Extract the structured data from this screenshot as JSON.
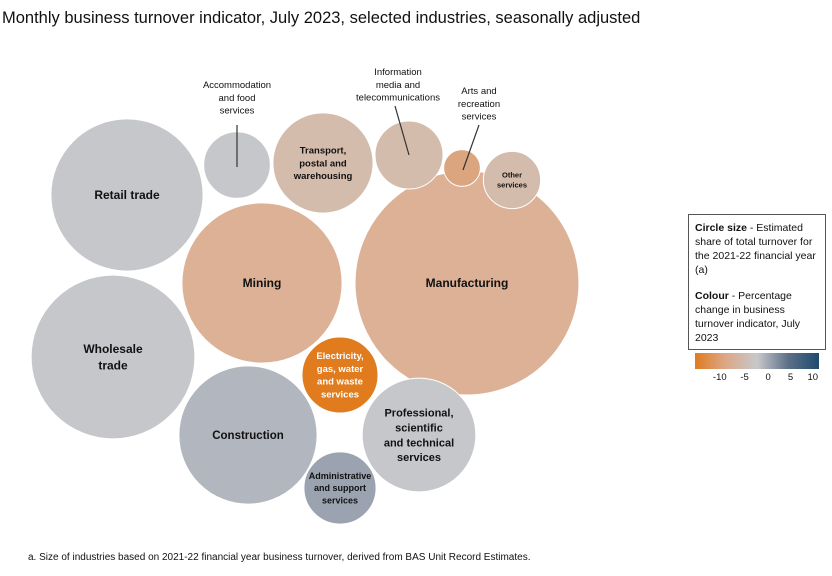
{
  "title": "Monthly business turnover indicator, July 2023, selected industries, seasonally adjusted",
  "chart_data": {
    "type": "bubble",
    "title": "Monthly business turnover indicator, July 2023, selected industries, seasonally adjusted",
    "size_measure": "Estimated share of total turnover for the 2021-22 financial year (%)",
    "colour_measure": "Percentage change in business turnover indicator, July 2023",
    "bubbles": [
      {
        "label": "Retail trade",
        "share": 12.0,
        "pct_change": 0,
        "color": "#c6c7ca"
      },
      {
        "label": "Wholesale trade",
        "share": 13.9,
        "pct_change": 0,
        "color": "#c6c7ca"
      },
      {
        "label": "Mining",
        "share": 13.3,
        "pct_change": -4,
        "color": "#dcb196"
      },
      {
        "label": "Manufacturing",
        "share": 26.0,
        "pct_change": -4,
        "color": "#dcb196"
      },
      {
        "label": "Construction",
        "share": 9.9,
        "pct_change": 2,
        "color": "#b2b6bf"
      },
      {
        "label": "Professional, scientific and technical services",
        "share": 6.7,
        "pct_change": 0,
        "color": "#c6c7ca"
      },
      {
        "label": "Electricity, gas, water and waste services",
        "share": 3.0,
        "pct_change": -12,
        "color": "#e07b1e"
      },
      {
        "label": "Administrative and support services",
        "share": 2.7,
        "pct_change": 4,
        "color": "#9ca3b0"
      },
      {
        "label": "Transport, postal and warehousing",
        "share": 5.2,
        "pct_change": -2,
        "color": "#d4bcac"
      },
      {
        "label": "Accommodation and food services",
        "share": 2.3,
        "pct_change": 0,
        "color": "#c6c7ca"
      },
      {
        "label": "Information media and telecommunications",
        "share": 2.4,
        "pct_change": -2,
        "color": "#d4bcac"
      },
      {
        "label": "Arts and recreation services",
        "share": 0.7,
        "pct_change": -6,
        "color": "#dba57f"
      },
      {
        "label": "Other services",
        "share": 1.7,
        "pct_change": -2,
        "color": "#d4bcac"
      }
    ],
    "colour_scale": {
      "ticks": [
        "-10",
        "-5",
        "0",
        "5",
        "10"
      ],
      "colors": [
        "#e07b20",
        "#c8c8cb",
        "#1f4a6e"
      ]
    }
  },
  "legend": {
    "size_heading": "Circle size",
    "size_text": " - Estimated share of total turnover for the 2021-22 financial year (a)",
    "colour_heading": "Colour",
    "colour_text": " - Percentage change in business turnover indicator, July 2023"
  },
  "footnote": "a. Size of industries based on 2021-22 financial year business turnover, derived from BAS Unit Record Estimates."
}
